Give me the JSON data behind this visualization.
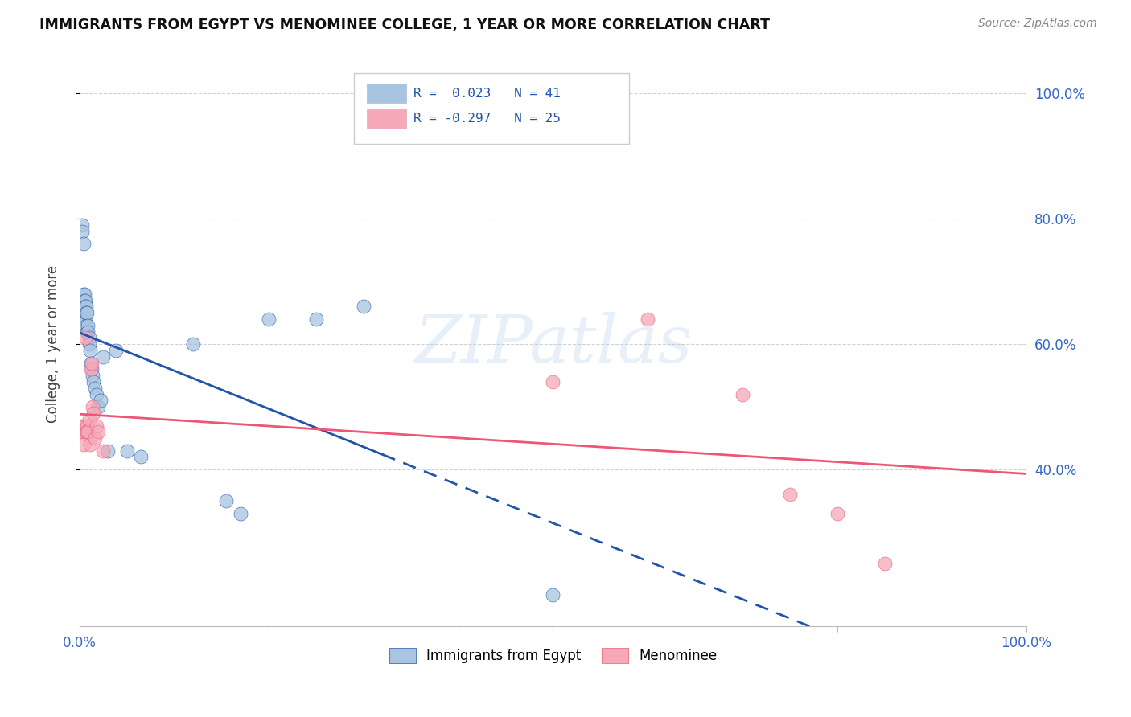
{
  "title": "IMMIGRANTS FROM EGYPT VS MENOMINEE COLLEGE, 1 YEAR OR MORE CORRELATION CHART",
  "source": "Source: ZipAtlas.com",
  "ylabel": "College, 1 year or more",
  "right_yticks": [
    "40.0%",
    "60.0%",
    "80.0%",
    "100.0%"
  ],
  "right_ytick_vals": [
    0.4,
    0.6,
    0.8,
    1.0
  ],
  "legend_label1": "Immigrants from Egypt",
  "legend_label2": "Menominee",
  "r1_text": "R =  0.023",
  "n1_text": "N = 41",
  "r2_text": "R = -0.297",
  "n2_text": "N = 25",
  "color_blue": "#a8c4e0",
  "color_pink": "#f4a8b8",
  "line_blue": "#2255aa",
  "line_pink": "#ee5577",
  "watermark": "ZIPatlas",
  "blue_x": [
    0.001,
    0.002,
    0.003,
    0.003,
    0.004,
    0.004,
    0.005,
    0.005,
    0.006,
    0.006,
    0.006,
    0.007,
    0.007,
    0.007,
    0.008,
    0.008,
    0.009,
    0.009,
    0.01,
    0.01,
    0.011,
    0.012,
    0.013,
    0.014,
    0.015,
    0.016,
    0.018,
    0.02,
    0.022,
    0.025,
    0.03,
    0.038,
    0.05,
    0.065,
    0.12,
    0.155,
    0.2,
    0.25,
    0.3,
    0.5,
    0.17
  ],
  "blue_y": [
    0.64,
    0.66,
    0.79,
    0.78,
    0.76,
    0.68,
    0.68,
    0.67,
    0.67,
    0.66,
    0.64,
    0.66,
    0.65,
    0.63,
    0.65,
    0.62,
    0.63,
    0.62,
    0.61,
    0.6,
    0.59,
    0.57,
    0.56,
    0.55,
    0.54,
    0.53,
    0.52,
    0.5,
    0.51,
    0.58,
    0.43,
    0.59,
    0.43,
    0.42,
    0.6,
    0.35,
    0.64,
    0.64,
    0.66,
    0.2,
    0.33
  ],
  "pink_x": [
    0.002,
    0.003,
    0.004,
    0.005,
    0.006,
    0.006,
    0.008,
    0.008,
    0.009,
    0.01,
    0.011,
    0.012,
    0.013,
    0.014,
    0.015,
    0.016,
    0.018,
    0.02,
    0.025,
    0.5,
    0.6,
    0.7,
    0.75,
    0.8,
    0.85
  ],
  "pink_y": [
    0.47,
    0.46,
    0.44,
    0.47,
    0.61,
    0.46,
    0.47,
    0.46,
    0.46,
    0.48,
    0.44,
    0.56,
    0.57,
    0.5,
    0.49,
    0.45,
    0.47,
    0.46,
    0.43,
    0.54,
    0.64,
    0.52,
    0.36,
    0.33,
    0.25
  ],
  "xlim": [
    0.0,
    1.0
  ],
  "ylim": [
    0.15,
    1.05
  ],
  "background_color": "#ffffff",
  "grid_color": "#cccccc"
}
